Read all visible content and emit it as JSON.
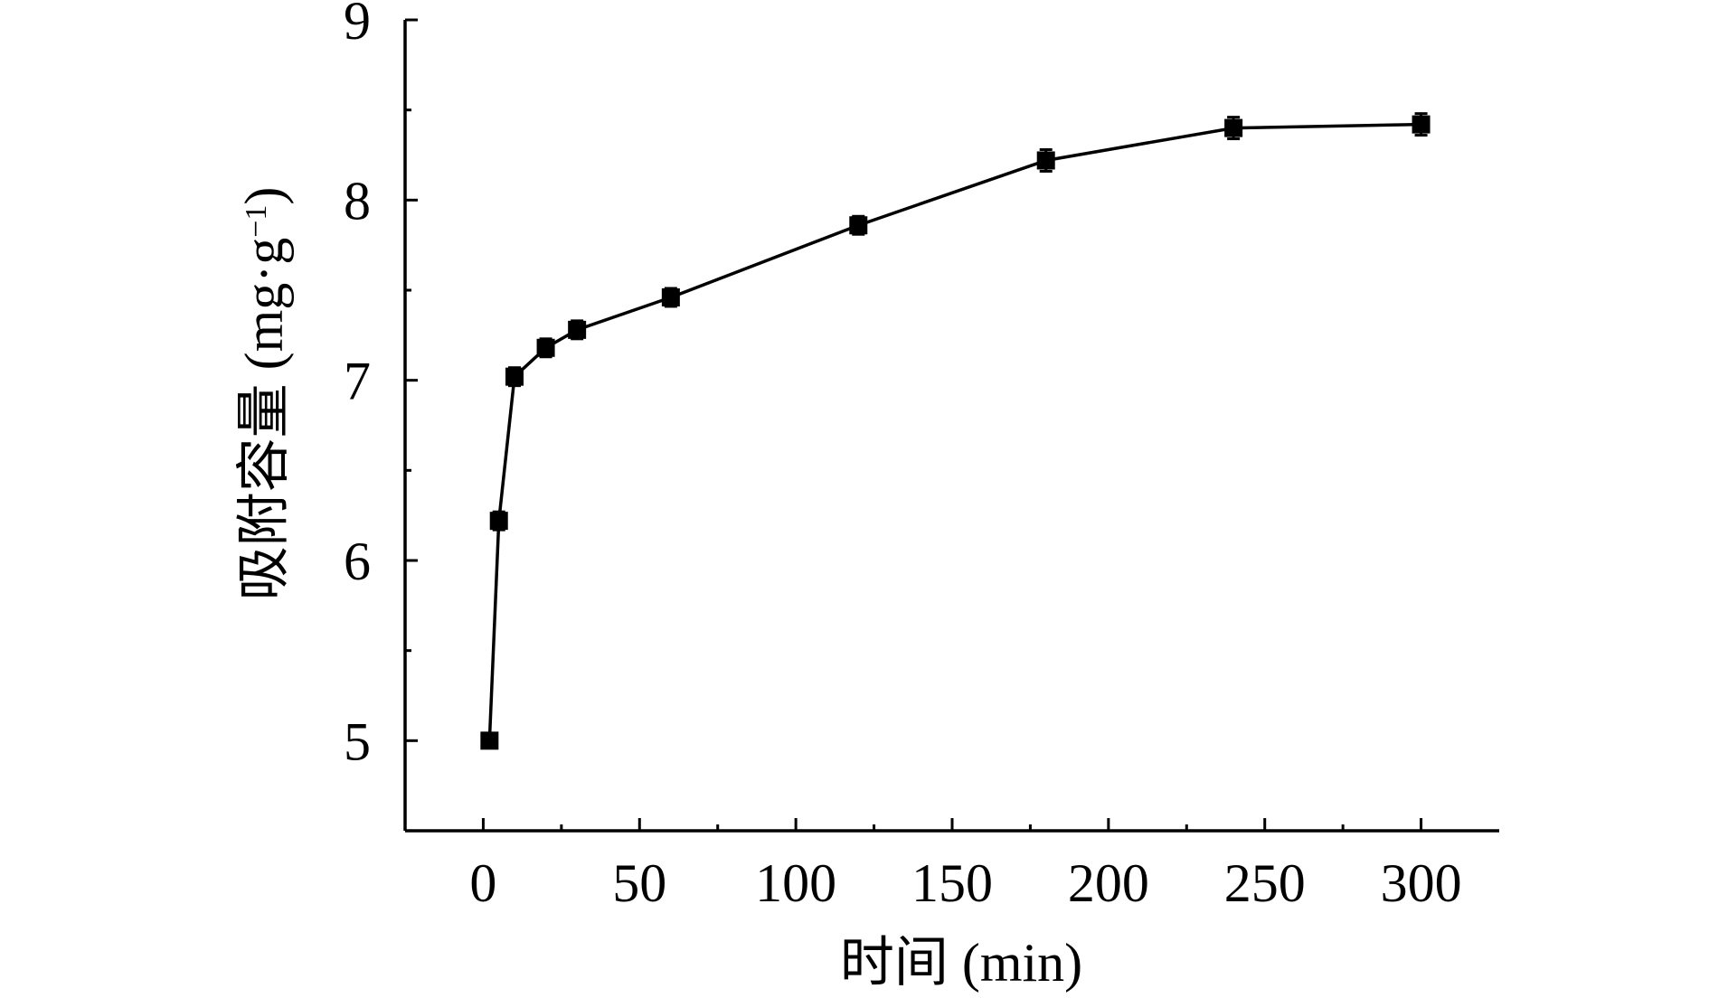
{
  "chart_data": {
    "type": "line",
    "title": "",
    "xlabel": "时间 (min)",
    "ylabel_main": "吸附容量 (mg·g",
    "ylabel_sup": "−1",
    "ylabel_close": ")",
    "xlim": [
      -25,
      325
    ],
    "ylim": [
      4.5,
      9
    ],
    "xticks": [
      0,
      50,
      100,
      150,
      200,
      250,
      300
    ],
    "xtick_labels": [
      "0",
      "50",
      "100",
      "150",
      "200",
      "250",
      "300"
    ],
    "xminor": [
      25,
      75,
      125,
      175,
      225,
      275
    ],
    "yticks": [
      5,
      6,
      7,
      8,
      9
    ],
    "ytick_labels": [
      "5",
      "6",
      "7",
      "8",
      "9"
    ],
    "yminor": [
      5.5,
      6.5,
      7.5,
      8.5
    ],
    "grid": false,
    "series": [
      {
        "x": [
          2,
          5,
          10,
          20,
          30,
          60,
          120,
          180,
          240,
          300
        ],
        "y": [
          5.0,
          6.22,
          7.02,
          7.18,
          7.28,
          7.46,
          7.86,
          8.22,
          8.4,
          8.42
        ],
        "error": [
          0.0,
          0.05,
          0.05,
          0.05,
          0.05,
          0.05,
          0.05,
          0.06,
          0.06,
          0.06
        ],
        "marker": "square",
        "color": "#000000"
      }
    ]
  }
}
